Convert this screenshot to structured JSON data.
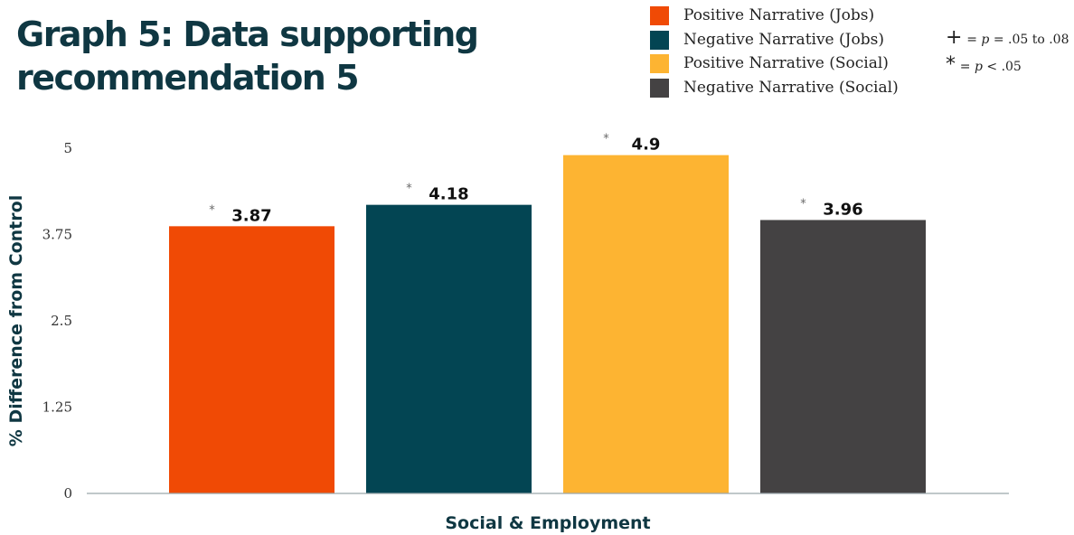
{
  "chart_data": {
    "type": "bar",
    "title": "Graph 5: Data supporting recommendation 5",
    "xlabel": "Social & Employment",
    "ylabel": "% Difference from Control",
    "categories": [
      "Social & Employment"
    ],
    "series": [
      {
        "name": "Positive Narrative (Jobs)",
        "values": [
          3.87
        ],
        "color": "#f04a05",
        "label": "3.87",
        "significance": "*"
      },
      {
        "name": "Negative Narrative (Jobs)",
        "values": [
          4.18
        ],
        "color": "#034553",
        "label": "4.18",
        "significance": "*"
      },
      {
        "name": "Positive Narrative (Social)",
        "values": [
          4.9
        ],
        "color": "#fdb432",
        "label": "4.9",
        "significance": "*"
      },
      {
        "name": "Negative Narrative (Social)",
        "values": [
          3.96
        ],
        "color": "#444243",
        "label": "3.96",
        "significance": "*"
      }
    ],
    "ylim": [
      0,
      5
    ],
    "yticks": [
      "0",
      "1.25",
      "2.5",
      "3.75",
      "5"
    ],
    "grid": false,
    "legend_position": "top-right",
    "notes": [
      {
        "symbol": "+",
        "text_prefix": "= ",
        "p": "p",
        "text_suffix": " = .05 to .08"
      },
      {
        "symbol": "*",
        "text_prefix": "= ",
        "p": "p",
        "text_suffix": " < .05"
      }
    ]
  }
}
